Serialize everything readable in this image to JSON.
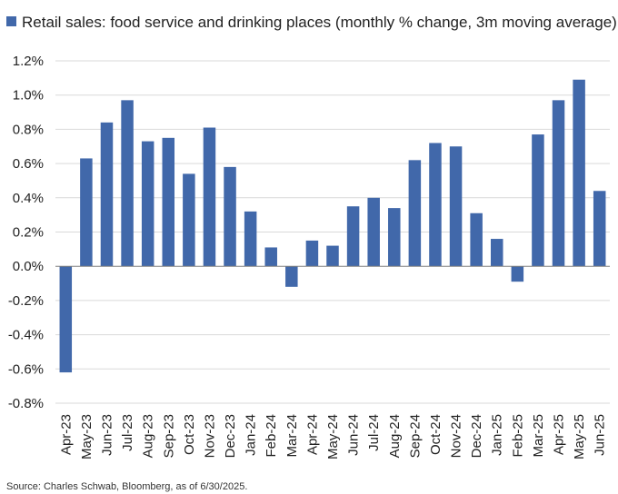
{
  "colors": {
    "bar": "#4168AA",
    "grid": "#D9D9D9",
    "axis": "#808080",
    "text": "#222222"
  },
  "source": "Source: Charles Schwab, Bloomberg, as of 6/30/2025.",
  "chart_data": {
    "type": "bar",
    "legend": "Retail sales: food service and drinking places (monthly % change, 3m moving average)",
    "legend_position": "top-left",
    "grid": true,
    "y_unit": "%",
    "ylim": [
      -0.8,
      1.2
    ],
    "y_ticks": [
      "1.2%",
      "1.0%",
      "0.8%",
      "0.6%",
      "0.4%",
      "0.2%",
      "0.0%",
      "-0.2%",
      "-0.4%",
      "-0.6%",
      "-0.8%"
    ],
    "categories": [
      "Apr-23",
      "May-23",
      "Jun-23",
      "Jul-23",
      "Aug-23",
      "Sep-23",
      "Oct-23",
      "Nov-23",
      "Dec-23",
      "Jan-24",
      "Feb-24",
      "Mar-24",
      "Apr-24",
      "May-24",
      "Jun-24",
      "Jul-24",
      "Aug-24",
      "Sep-24",
      "Oct-24",
      "Nov-24",
      "Dec-24",
      "Jan-25",
      "Feb-25",
      "Mar-25",
      "Apr-25",
      "May-25",
      "Jun-25"
    ],
    "series": [
      {
        "name": "Retail sales: food service and drinking places (monthly % change, 3m moving average)",
        "values": [
          -0.62,
          0.63,
          0.84,
          0.97,
          0.73,
          0.75,
          0.54,
          0.81,
          0.58,
          0.32,
          0.11,
          -0.12,
          0.15,
          0.12,
          0.35,
          0.4,
          0.34,
          0.62,
          0.72,
          0.7,
          0.31,
          0.16,
          -0.09,
          0.77,
          0.97,
          1.09,
          0.44
        ]
      }
    ]
  }
}
